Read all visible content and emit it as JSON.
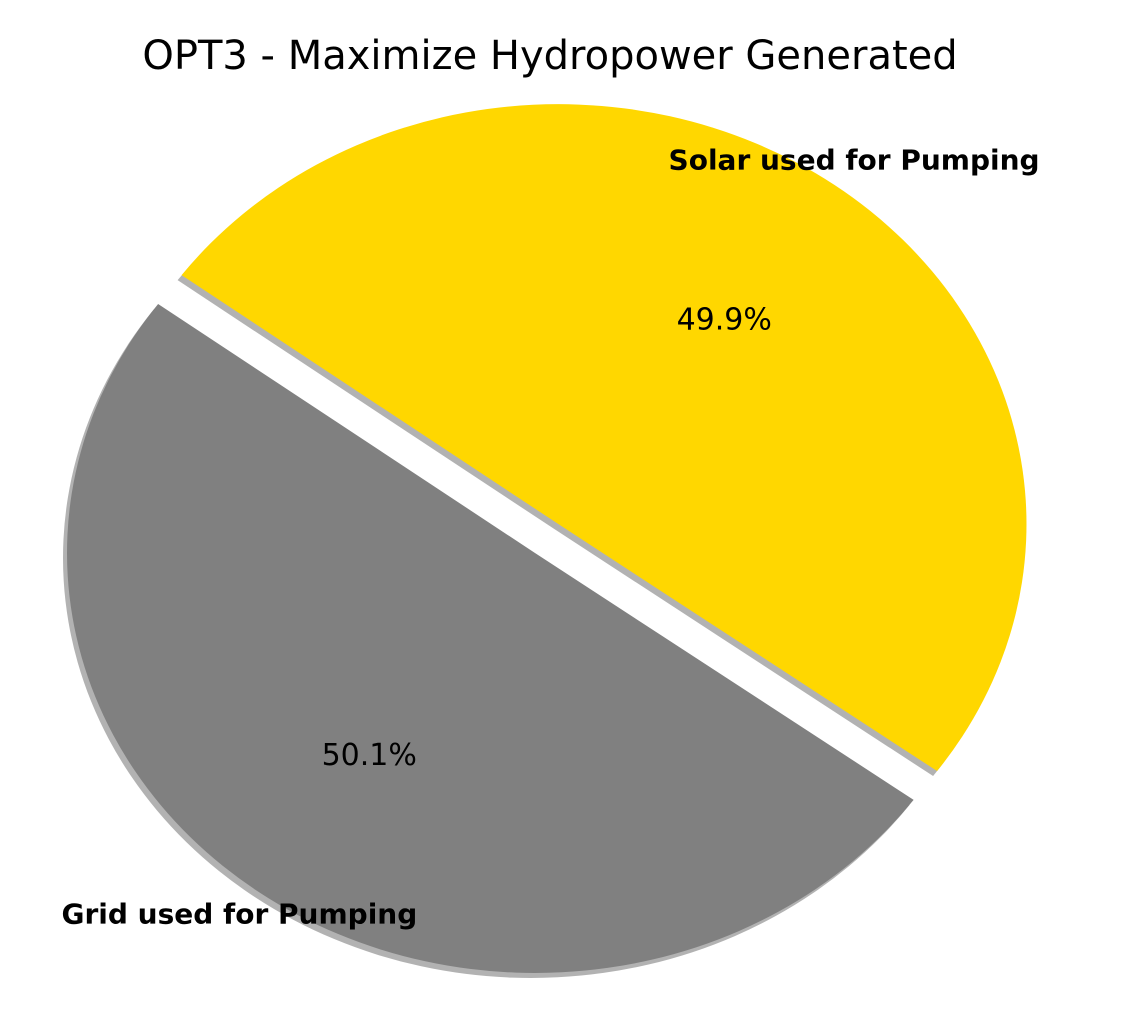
{
  "chart_data": {
    "type": "pie",
    "title": "OPT3 - Maximize Hydropower Generated",
    "categories": [
      "Solar used for Pumping",
      "Grid used for Pumping"
    ],
    "values": [
      49.9,
      50.1
    ],
    "value_labels": [
      "49.9%",
      "50.1%"
    ],
    "colors": [
      "#ffd700",
      "#808080"
    ]
  }
}
